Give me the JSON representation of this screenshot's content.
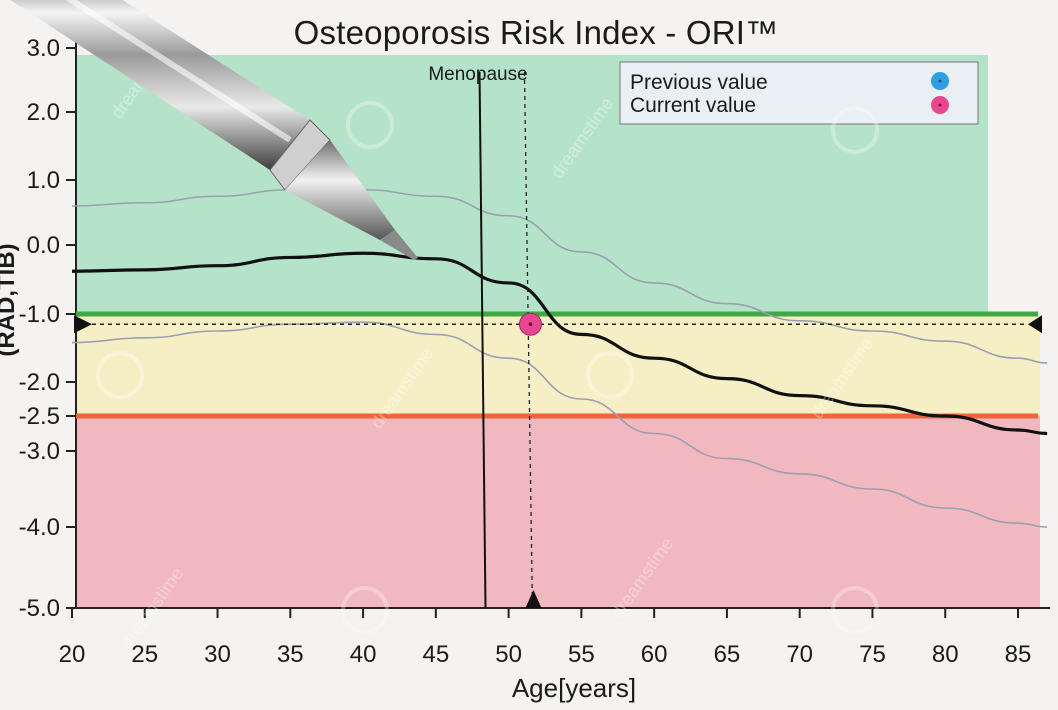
{
  "chart_data": {
    "type": "line",
    "title": "Osteoporosis Risk Index - ORI™",
    "xlabel": "Age[years]",
    "ylabel": "(RAD,TIB)",
    "xlim": [
      20,
      87
    ],
    "ylim": [
      -5.0,
      3.0
    ],
    "xticks": [
      20,
      25,
      30,
      35,
      40,
      45,
      50,
      55,
      60,
      65,
      70,
      75,
      80,
      85
    ],
    "yticks": [
      {
        "label": "3.0",
        "value": 3.0
      },
      {
        "label": "2.0",
        "value": 2.0
      },
      {
        "label": "1.0",
        "value": 1.0
      },
      {
        "label": "0.0",
        "value": 0.0
      },
      {
        "label": "-1.0",
        "value": -1.0
      },
      {
        "label": "-2.0",
        "value": -2.0
      },
      {
        "label": "-2.5",
        "value": -2.5
      },
      {
        "label": "-3.0",
        "value": -3.0
      },
      {
        "label": "-4.0",
        "value": -4.0
      },
      {
        "label": "-5.0",
        "value": -5.0
      }
    ],
    "zones": [
      {
        "from": -1.0,
        "to": 3.0,
        "color": "#b5e3c9"
      },
      {
        "from": -2.5,
        "to": -1.0,
        "color": "#f6efc6"
      },
      {
        "from": -5.0,
        "to": -2.5,
        "color": "#f1b8c0"
      }
    ],
    "thresholds": [
      {
        "value": -1.0,
        "color": "#3faa45"
      },
      {
        "value": -2.5,
        "color": "#f0643a"
      }
    ],
    "menopause": {
      "label": "Menopause",
      "age": 48
    },
    "series": [
      {
        "name": "mean",
        "color": "#111111",
        "x": [
          20,
          25,
          30,
          35,
          40,
          45,
          50,
          55,
          60,
          65,
          70,
          75,
          80,
          85,
          87
        ],
        "y": [
          -0.38,
          -0.36,
          -0.3,
          -0.18,
          -0.12,
          -0.2,
          -0.55,
          -1.3,
          -1.65,
          -1.95,
          -2.2,
          -2.35,
          -2.5,
          -2.7,
          -2.75
        ]
      },
      {
        "name": "upper",
        "color": "#9a9fb2",
        "x": [
          20,
          25,
          30,
          35,
          40,
          45,
          50,
          55,
          60,
          65,
          70,
          75,
          80,
          85,
          87
        ],
        "y": [
          0.6,
          0.65,
          0.75,
          0.85,
          0.85,
          0.75,
          0.45,
          -0.1,
          -0.55,
          -0.85,
          -1.1,
          -1.25,
          -1.4,
          -1.65,
          -1.72
        ]
      },
      {
        "name": "lower",
        "color": "#9a9fb2",
        "x": [
          20,
          25,
          30,
          35,
          40,
          45,
          50,
          55,
          60,
          65,
          70,
          75,
          80,
          85,
          87
        ],
        "y": [
          -1.42,
          -1.35,
          -1.25,
          -1.15,
          -1.12,
          -1.3,
          -1.65,
          -2.25,
          -2.75,
          -3.1,
          -3.3,
          -3.5,
          -3.75,
          -3.95,
          -4.0
        ]
      }
    ],
    "current_point": {
      "x": 51.5,
      "y": -1.15,
      "color": "#e8478f"
    },
    "marker_line": {
      "y": -1.15,
      "x": 51.5
    },
    "legend": {
      "position": "top-right",
      "items": [
        {
          "label": "Previous value",
          "color": "#2f9fe0"
        },
        {
          "label": "Current value",
          "color": "#e8478f"
        }
      ]
    },
    "watermark": "dreamstime"
  }
}
